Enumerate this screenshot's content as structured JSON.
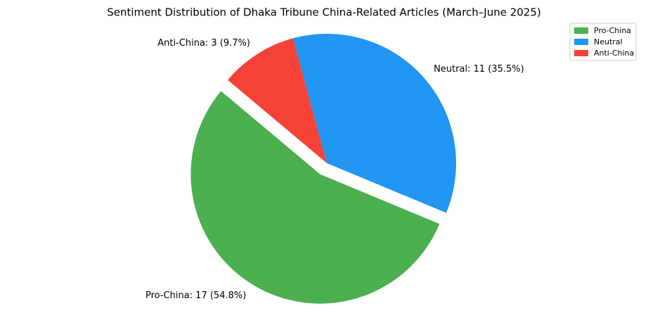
{
  "chart_data": {
    "type": "pie",
    "title": "Sentiment Distribution of Dhaka Tribune China-Related Articles (March–June 2025)",
    "categories": [
      "Pro-China",
      "Neutral",
      "Anti-China"
    ],
    "values": [
      17,
      11,
      3
    ],
    "value_labels": [
      "Pro-China: 17 (54.8%)",
      "Neutral: 11 (35.5%)",
      "Anti-China: 3 (9.7%)"
    ],
    "colors": [
      "#4caf50",
      "#2196f3",
      "#f44336"
    ],
    "legend": "upper right"
  }
}
